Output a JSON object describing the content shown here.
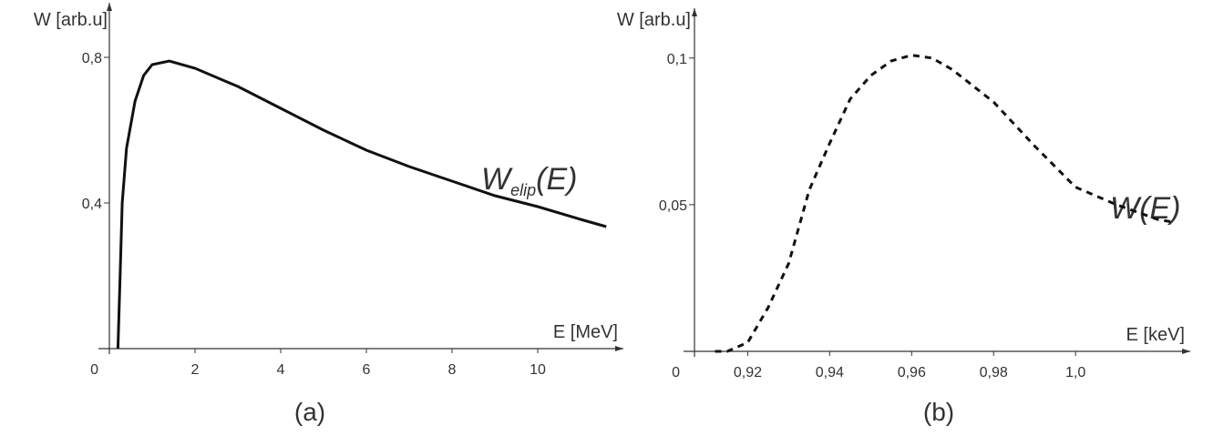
{
  "chart_data": [
    {
      "type": "line",
      "caption": "(a)",
      "ylabel": "W [arb.u]",
      "xlabel": "E [MeV]",
      "annotation": {
        "text": "W",
        "subscript": "elip",
        "suffix": "(E)"
      },
      "x": [
        0.2,
        0.25,
        0.3,
        0.4,
        0.6,
        0.8,
        1.0,
        1.4,
        2,
        3,
        4,
        5,
        6,
        7,
        8,
        9,
        10,
        11,
        11.6
      ],
      "values": [
        0.0,
        0.2,
        0.4,
        0.55,
        0.68,
        0.75,
        0.78,
        0.79,
        0.77,
        0.72,
        0.66,
        0.6,
        0.545,
        0.5,
        0.46,
        0.42,
        0.39,
        0.355,
        0.335
      ],
      "color": "#111111",
      "line_style": "solid",
      "xlim": [
        0,
        12
      ],
      "ylim": [
        0,
        0.95
      ],
      "xticks": [
        0,
        2,
        4,
        6,
        8,
        10
      ],
      "yticks": [
        {
          "value": 0.4,
          "label": "0,4"
        },
        {
          "value": 0.8,
          "label": "0,8"
        }
      ]
    },
    {
      "type": "line",
      "caption": "(b)",
      "ylabel": "W [arb.u]",
      "xlabel": "E [keV]",
      "origin_label": "0",
      "annotation": {
        "text": "W(E)"
      },
      "x": [
        0.912,
        0.915,
        0.92,
        0.925,
        0.93,
        0.935,
        0.94,
        0.945,
        0.95,
        0.955,
        0.96,
        0.965,
        0.97,
        0.98,
        0.99,
        1.0,
        1.01,
        1.02,
        1.024
      ],
      "values": [
        0,
        0,
        0.003,
        0.015,
        0.03,
        0.055,
        0.071,
        0.086,
        0.094,
        0.099,
        0.101,
        0.1,
        0.096,
        0.085,
        0.07,
        0.056,
        0.05,
        0.045,
        0.044
      ],
      "color": "#111111",
      "line_style": "dashed",
      "xlim": [
        0.907,
        1.028
      ],
      "ylim": [
        0,
        0.117
      ],
      "xticks": [
        {
          "value": 0.92,
          "label": "0,92"
        },
        {
          "value": 0.94,
          "label": "0,94"
        },
        {
          "value": 0.96,
          "label": "0,96"
        },
        {
          "value": 0.98,
          "label": "0,98"
        },
        {
          "value": 1.0,
          "label": "1,0"
        }
      ],
      "yticks": [
        {
          "value": 0.05,
          "label": "0,05"
        },
        {
          "value": 0.1,
          "label": "0,1"
        }
      ]
    }
  ]
}
